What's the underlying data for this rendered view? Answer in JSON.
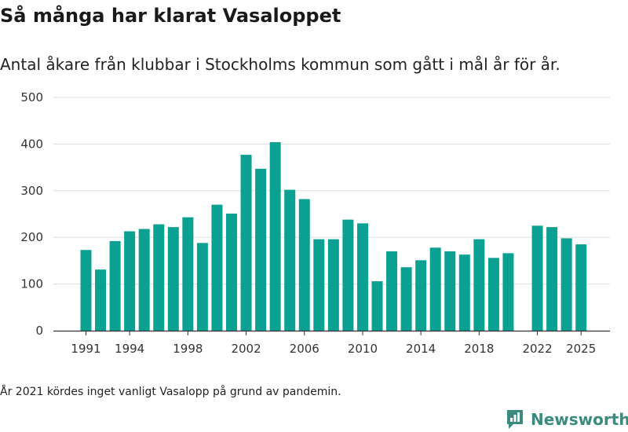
{
  "title": "Så många har klarat Vasaloppet",
  "subtitle": "Antal åkare från klubbar i Stockholms kommun som gått i mål år för år.",
  "note": "År 2021 kördes inget vanligt Vasalopp på grund av pandemin.",
  "brand": {
    "name": "Newsworthy",
    "color": "#3a8a7d"
  },
  "colors": {
    "bar": "#0aa092",
    "grid": "#dddddd",
    "axis": "#333333",
    "text": "#333333"
  },
  "chart_data": {
    "type": "bar",
    "title": "Så många har klarat Vasaloppet",
    "xlabel": "",
    "ylabel": "",
    "ylim": [
      0,
      500
    ],
    "yticks": [
      0,
      100,
      200,
      300,
      400,
      500
    ],
    "x_tick_labels": [
      "1991",
      "1994",
      "1998",
      "2002",
      "2006",
      "2010",
      "2014",
      "2018",
      "2022",
      "2025"
    ],
    "categories": [
      1991,
      1992,
      1993,
      1994,
      1995,
      1996,
      1997,
      1998,
      1999,
      2000,
      2001,
      2002,
      2003,
      2004,
      2005,
      2006,
      2007,
      2008,
      2009,
      2010,
      2011,
      2012,
      2013,
      2014,
      2015,
      2016,
      2017,
      2018,
      2019,
      2020,
      2021,
      2022,
      2023,
      2024,
      2025
    ],
    "values": [
      173,
      131,
      192,
      213,
      218,
      228,
      222,
      243,
      188,
      270,
      251,
      377,
      347,
      404,
      302,
      282,
      196,
      196,
      238,
      230,
      106,
      170,
      136,
      151,
      178,
      170,
      163,
      196,
      156,
      166,
      null,
      225,
      222,
      198,
      185
    ]
  }
}
